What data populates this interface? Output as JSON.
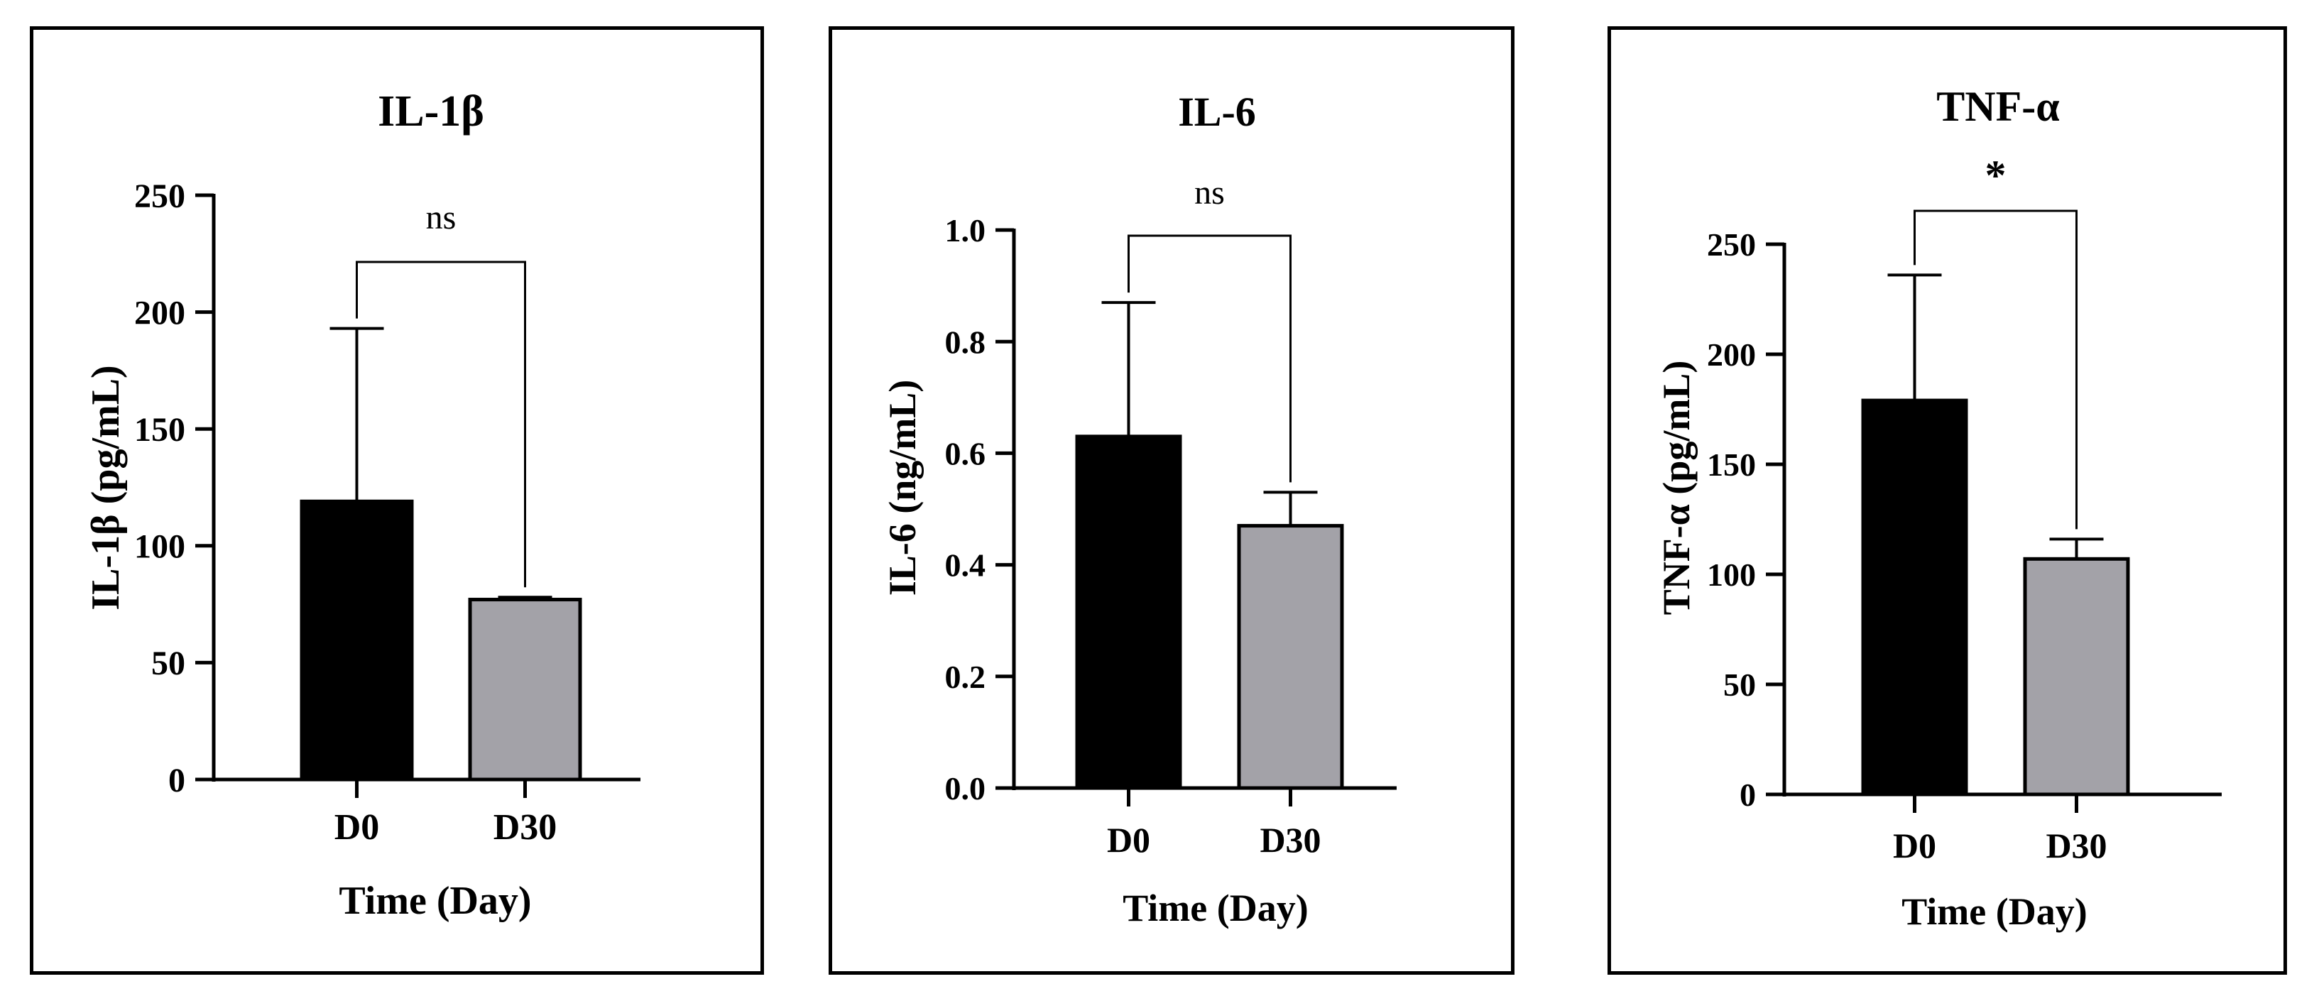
{
  "chart_data": [
    {
      "type": "bar",
      "title": "IL-1β",
      "xlabel": "Time (Day)",
      "ylabel": "IL-1β (pg/mL)",
      "categories": [
        "D0",
        "D30"
      ],
      "values": [
        119,
        77
      ],
      "error_upper": [
        193,
        78
      ],
      "ylim": [
        0,
        250
      ],
      "yticks": [
        0,
        50,
        100,
        150,
        200,
        250
      ],
      "ytick_labels": [
        "0",
        "50",
        "100",
        "150",
        "200",
        "250"
      ],
      "bar_colors": [
        "#000000",
        "#a3a2a8"
      ],
      "significance": {
        "label": "ns",
        "between": [
          "D0",
          "D30"
        ]
      }
    },
    {
      "type": "bar",
      "title": "IL-6",
      "xlabel": "Time (Day)",
      "ylabel": "IL-6  (ng/mL)",
      "categories": [
        "D0",
        "D30"
      ],
      "values": [
        0.63,
        0.47
      ],
      "error_upper": [
        0.87,
        0.53
      ],
      "ylim": [
        0,
        1.0
      ],
      "yticks": [
        0,
        0.2,
        0.4,
        0.6,
        0.8,
        1.0
      ],
      "ytick_labels": [
        "0.0",
        "0.2",
        "0.4",
        "0.6",
        "0.8",
        "1.0"
      ],
      "bar_colors": [
        "#000000",
        "#a3a2a8"
      ],
      "significance": {
        "label": "ns",
        "between": [
          "D0",
          "D30"
        ]
      }
    },
    {
      "type": "bar",
      "title": "TNF-α",
      "xlabel": "Time (Day)",
      "ylabel": "TNF-α (pg/mL)",
      "categories": [
        "D0",
        "D30"
      ],
      "values": [
        179,
        107
      ],
      "error_upper": [
        236,
        116
      ],
      "ylim": [
        0,
        250
      ],
      "yticks": [
        0,
        50,
        100,
        150,
        200,
        250
      ],
      "ytick_labels": [
        "0",
        "50",
        "100",
        "150",
        "200",
        "250"
      ],
      "bar_colors": [
        "#000000",
        "#a3a2a8"
      ],
      "significance": {
        "label": "*",
        "between": [
          "D0",
          "D30"
        ]
      }
    }
  ]
}
